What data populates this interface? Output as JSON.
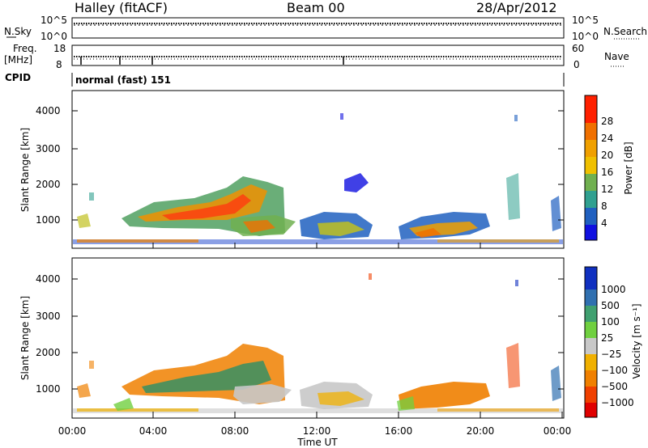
{
  "header": {
    "station": "Halley (fitACF)",
    "beam": "Beam 00",
    "date": "28/Apr/2012"
  },
  "strips": {
    "nsky_label": "N.Sky",
    "nsky_ticks": [
      "10^5",
      "10^0"
    ],
    "nsearch_label": "N.Search",
    "nsearch_ticks": [
      "10^5",
      "10^0"
    ],
    "freq_label_1": "Freq.",
    "freq_label_2": "[MHz]",
    "freq_ticks": [
      "18",
      "8"
    ],
    "nave_label": "Nave",
    "nave_ticks": [
      "60",
      "0"
    ],
    "cpid_label": "CPID",
    "cpid_text": "normal (fast) 151"
  },
  "chart_data": [
    {
      "type": "heatmap",
      "ylabel": "Slant Range [km]",
      "xlabel": "Time UT",
      "x_ticks": [
        "00:00",
        "04:00",
        "08:00",
        "12:00",
        "16:00",
        "20:00",
        "00:00"
      ],
      "y_ticks": [
        "1000",
        "2000",
        "3000",
        "4000"
      ],
      "colorbar_label": "Power [dB]",
      "colorbar_ticks": [
        "4",
        "8",
        "12",
        "16",
        "20",
        "24",
        "28"
      ],
      "colorbar_colors": [
        "#1010e0",
        "#2060c0",
        "#30a090",
        "#70b050",
        "#c0c020",
        "#f0a000",
        "#f07000",
        "#ff2000"
      ]
    },
    {
      "type": "heatmap",
      "ylabel": "Slant Range [km]",
      "xlabel": "Time UT",
      "x_ticks": [
        "00:00",
        "04:00",
        "08:00",
        "12:00",
        "16:00",
        "20:00",
        "00:00"
      ],
      "y_ticks": [
        "1000",
        "2000",
        "3000",
        "4000"
      ],
      "colorbar_label": "Velocity [m s⁻¹]",
      "colorbar_ticks": [
        "1000",
        "500",
        "100",
        "25",
        "−25",
        "−100",
        "−500",
        "−1000"
      ],
      "colorbar_colors": [
        "#1030c0",
        "#3070b0",
        "#40a070",
        "#70d040",
        "#c8c8c8",
        "#f0b000",
        "#f08000",
        "#f04000",
        "#e00000"
      ]
    }
  ]
}
